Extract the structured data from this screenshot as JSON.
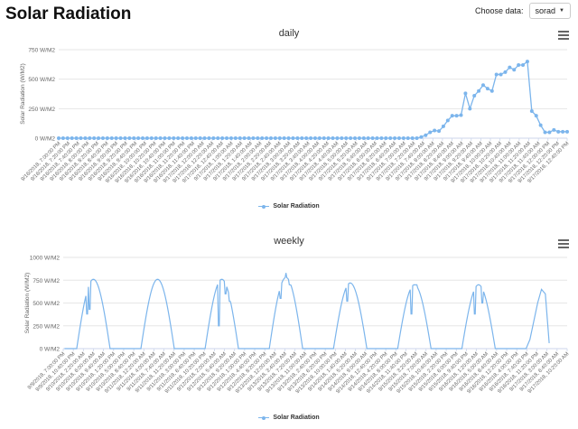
{
  "page": {
    "title": "Solar Radiation",
    "choose_label": "Choose data:",
    "select_value": "sorad",
    "accent_color": "#7cb5ec"
  },
  "chart_data": [
    {
      "type": "line",
      "title": "daily",
      "ylabel": "Solar Radiation (W/M2)",
      "ylim": [
        0,
        750
      ],
      "yticks": [
        0,
        250,
        500,
        750
      ],
      "ytick_labels": [
        "0 W/M2",
        "250 W/M2",
        "500 W/M2",
        "750 W/M2"
      ],
      "grid": true,
      "markers": true,
      "legend": "bottom-center",
      "series": [
        {
          "name": "Solar Radiation",
          "values": [
            0,
            0,
            0,
            0,
            0,
            0,
            0,
            0,
            0,
            0,
            0,
            0,
            0,
            0,
            0,
            0,
            0,
            0,
            0,
            0,
            0,
            0,
            0,
            0,
            0,
            0,
            0,
            0,
            0,
            0,
            0,
            0,
            0,
            0,
            0,
            0,
            0,
            0,
            0,
            0,
            0,
            0,
            0,
            0,
            0,
            0,
            0,
            0,
            0,
            0,
            0,
            0,
            0,
            0,
            0,
            0,
            0,
            0,
            0,
            0,
            0,
            0,
            0,
            0,
            0,
            0,
            0,
            0,
            0,
            0,
            0,
            0,
            0,
            0,
            0,
            0,
            0,
            0,
            0,
            0,
            0,
            0,
            10,
            25,
            50,
            65,
            60,
            100,
            150,
            190,
            190,
            195,
            380,
            250,
            360,
            400,
            450,
            420,
            400,
            540,
            540,
            560,
            600,
            580,
            620,
            620,
            650,
            230,
            190,
            110,
            50,
            50,
            70,
            55,
            55,
            55
          ]
        }
      ],
      "x_labels": [
        "9/16/2018, 7:00:00 PM",
        "9/16/2018, 7:20:00 PM",
        "9/16/2018, 7:40:00 PM",
        "9/16/2018, 8:00:00 PM",
        "9/16/2018, 8:20:00 PM",
        "9/16/2018, 8:40:00 PM",
        "9/16/2018, 9:00:00 PM",
        "9/16/2018, 9:20:00 PM",
        "9/16/2018, 9:40:00 PM",
        "9/16/2018, 10:00:00 PM",
        "9/16/2018, 10:20:00 PM",
        "9/16/2018, 10:40:00 PM",
        "9/16/2018, 11:00:00 PM",
        "9/16/2018, 11:20:00 PM",
        "9/16/2018, 11:40:00 PM",
        "9/17/2018, 12:00:00 AM",
        "9/17/2018, 12:20:00 AM",
        "9/17/2018, 12:40:00 AM",
        "9/17/2018, 1:00:00 AM",
        "9/17/2018, 1:20:00 AM",
        "9/17/2018, 1:40:00 AM",
        "9/17/2018, 2:00:00 AM",
        "9/17/2018, 2:20:00 AM",
        "9/17/2018, 2:40:00 AM",
        "9/17/2018, 3:00:00 AM",
        "9/17/2018, 3:20:00 AM",
        "9/17/2018, 3:40:00 AM",
        "9/17/2018, 4:00:00 AM",
        "9/17/2018, 4:20:00 AM",
        "9/17/2018, 4:40:00 AM",
        "9/17/2018, 5:00:00 AM",
        "9/17/2018, 5:20:00 AM",
        "9/17/2018, 5:40:00 AM",
        "9/17/2018, 6:00:00 AM",
        "9/17/2018, 6:20:00 AM",
        "9/17/2018, 6:40:00 AM",
        "9/17/2018, 7:00:00 AM",
        "9/17/2018, 7:20:00 AM",
        "9/17/2018, 7:40:00 AM",
        "9/17/2018, 8:00:00 AM",
        "9/17/2018, 8:20:00 AM",
        "9/17/2018, 8:40:00 AM",
        "9/17/2018, 9:00:00 AM",
        "9/17/2018, 9:20:00 AM",
        "9/17/2018, 9:40:00 AM",
        "9/17/2018, 10:00:00 AM",
        "9/17/2018, 10:20:00 AM",
        "9/17/2018, 10:40:00 AM",
        "9/17/2018, 11:00:00 AM",
        "9/17/2018, 11:20:00 AM",
        "9/17/2018, 11:40:00 AM",
        "9/17/2018, 12:00:00 PM",
        "9/17/2018, 12:20:00 PM",
        "9/17/2018, 12:40:00 PM"
      ]
    },
    {
      "type": "line",
      "title": "weekly",
      "ylabel": "Solar Radiation (W/M2)",
      "ylim": [
        0,
        1000
      ],
      "yticks": [
        0,
        250,
        500,
        750,
        1000
      ],
      "ytick_labels": [
        "0 W/M2",
        "250 W/M2",
        "500 W/M2",
        "750 W/M2",
        "1000 W/M2"
      ],
      "grid": true,
      "markers": false,
      "legend": "bottom-center",
      "series": [
        {
          "name": "Solar Radiation",
          "days": [
            {
              "day": 0,
              "peak": 760,
              "spikes": [
                [
                  -0.1,
                  380
                ],
                [
                  -0.06,
                  430
                ]
              ]
            },
            {
              "day": 1,
              "peak": 760,
              "spikes": []
            },
            {
              "day": 2,
              "peak": 760,
              "spikes": [
                [
                  -0.04,
                  250
                ],
                [
                  0.06,
                  600
                ],
                [
                  0.12,
                  520
                ]
              ]
            },
            {
              "day": 3,
              "peak": 780,
              "spikes": [
                [
                  -0.08,
                  550
                ],
                [
                  0.0,
                  830
                ],
                [
                  0.06,
                  700
                ]
              ]
            },
            {
              "day": 4,
              "peak": 720,
              "spikes": [
                [
                  -0.05,
                  520
                ]
              ]
            },
            {
              "day": 5,
              "peak": 700,
              "spikes": [
                [
                  -0.05,
                  380
                ],
                [
                  0.03,
                  700
                ]
              ]
            },
            {
              "day": 6,
              "peak": 700,
              "spikes": [
                [
                  -0.06,
                  380
                ],
                [
                  0.06,
                  500
                ]
              ]
            }
          ],
          "partial_last": {
            "day": 7,
            "values": [
              0,
              100,
              300,
              500,
              650,
              600,
              60
            ]
          }
        }
      ],
      "x_labels": [
        "9/9/2018, 7:00:00 PM",
        "9/9/2018, 10:40:00 PM",
        "9/10/2018, 2:20:00 AM",
        "9/10/2018, 6:00:00 AM",
        "9/10/2018, 9:40:00 AM",
        "9/10/2018, 1:20:00 PM",
        "9/10/2018, 5:00:00 PM",
        "9/10/2018, 8:40:00 PM",
        "9/11/2018, 12:20:00 AM",
        "9/11/2018, 4:00:00 AM",
        "9/11/2018, 7:40:00 AM",
        "9/11/2018, 11:20:00 AM",
        "9/11/2018, 3:00:00 PM",
        "9/11/2018, 6:40:00 PM",
        "9/11/2018, 10:20:00 PM",
        "9/12/2018, 2:00:00 AM",
        "9/12/2018, 5:40:00 AM",
        "9/12/2018, 9:20:00 AM",
        "9/12/2018, 1:00:00 PM",
        "9/12/2018, 4:40:00 PM",
        "9/12/2018, 8:20:00 PM",
        "9/13/2018, 12:00:00 AM",
        "9/13/2018, 3:40:00 AM",
        "9/13/2018, 7:20:00 AM",
        "9/13/2018, 11:00:00 AM",
        "9/13/2018, 2:40:00 PM",
        "9/13/2018, 6:20:00 PM",
        "9/13/2018, 10:00:00 PM",
        "9/14/2018, 1:40:00 AM",
        "9/14/2018, 5:20:00 AM",
        "9/14/2018, 9:00:00 AM",
        "9/14/2018, 12:40:00 PM",
        "9/14/2018, 4:20:00 PM",
        "9/14/2018, 8:00:00 PM",
        "9/14/2018, 11:40:00 PM",
        "9/15/2018, 3:20:00 AM",
        "9/15/2018, 7:00:00 AM",
        "9/15/2018, 10:40:00 AM",
        "9/15/2018, 2:20:00 PM",
        "9/15/2018, 6:00:00 PM",
        "9/15/2018, 9:40:00 PM",
        "9/16/2018, 1:20:00 AM",
        "9/16/2018, 5:00:00 AM",
        "9/16/2018, 8:40:00 AM",
        "9/16/2018, 12:20:00 PM",
        "9/16/2018, 4:00:00 PM",
        "9/16/2018, 7:40:00 PM",
        "9/16/2018, 11:20:00 PM",
        "9/17/2018, 3:00:00 AM",
        "9/17/2018, 6:40:00 AM",
        "9/17/2018, 10:20:00 AM"
      ]
    }
  ]
}
